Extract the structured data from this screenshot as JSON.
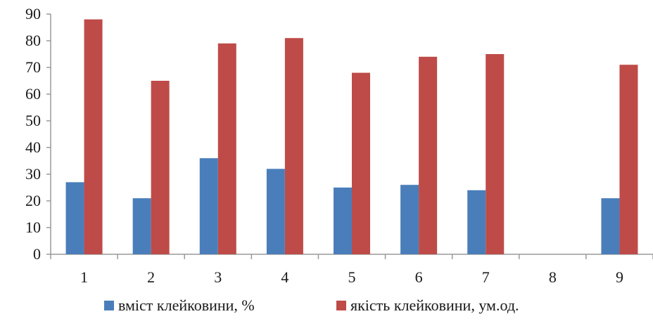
{
  "chart_data": {
    "type": "bar",
    "title": "",
    "xlabel": "",
    "ylabel": "",
    "categories": [
      "1",
      "2",
      "3",
      "4",
      "5",
      "6",
      "7",
      "8",
      "9"
    ],
    "series": [
      {
        "name": "вміст клейковини, %",
        "color": "#4a7ebb",
        "values": [
          27,
          21,
          36,
          32,
          25,
          26,
          24,
          null,
          21
        ]
      },
      {
        "name": "якість клейковини, ум.од.",
        "color": "#be4b48",
        "values": [
          88,
          65,
          79,
          81,
          68,
          74,
          75,
          null,
          71
        ]
      }
    ],
    "ylim": [
      0,
      90
    ],
    "yticks": [
      0,
      10,
      20,
      30,
      40,
      50,
      60,
      70,
      80,
      90
    ],
    "grid": false,
    "legend": "bottom"
  }
}
